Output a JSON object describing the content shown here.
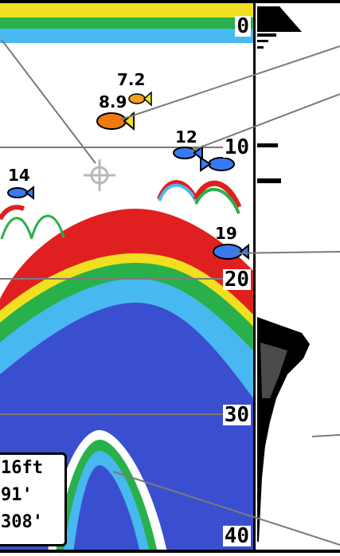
{
  "depth_scale": {
    "labels": [
      "0",
      "10",
      "20",
      "30",
      "40"
    ]
  },
  "fish_targets": [
    {
      "id": "fish-7-2",
      "depth": "7.2"
    },
    {
      "id": "fish-8-9",
      "depth": "8.9"
    },
    {
      "id": "fish-12",
      "depth": "12"
    },
    {
      "id": "fish-14",
      "depth": "14"
    },
    {
      "id": "fish-19",
      "depth": "19"
    }
  ],
  "readout": {
    "line1": "16ft",
    "line2": "91'",
    "line3": "308'"
  },
  "colors": {
    "deep_blue": "#3a4fd0",
    "light_blue": "#48b8f0",
    "green": "#2ab04a",
    "yellow": "#f0e020",
    "red": "#e02020",
    "flasher_black": "#000000"
  },
  "icons": [
    "cursor-crosshair-icon",
    "fish-icon"
  ]
}
